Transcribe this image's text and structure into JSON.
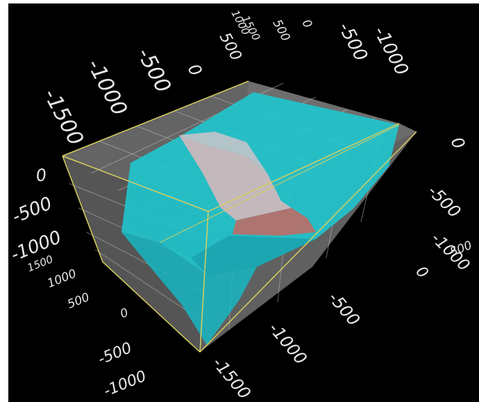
{
  "colors": {
    "background": "#000000",
    "frame": "#ffffff",
    "box_face": "#6e6e6e",
    "axis_line": "#d8d060",
    "grid_line": "#b8b8b8",
    "surface_outer": "#1ec8d2",
    "surface_inner_light": "#c9b4b8",
    "surface_inner_dark": "#b46e68",
    "tick_text": "#e8e8e8"
  },
  "axes": {
    "top_far": [
      "-1500",
      "-1000",
      "-500",
      "0",
      "500"
    ],
    "top_small_far": [
      "1000",
      "1500"
    ],
    "top_near": [
      "500",
      "0",
      "-500",
      "-1000"
    ],
    "left_upper": [
      "0",
      "-500",
      "-1000"
    ],
    "left_lower": [
      "1500",
      "1000",
      "500",
      "0",
      "-500",
      "-1000"
    ],
    "right_upper": [
      "0",
      "-500",
      "-1000"
    ],
    "right_extra": [
      "500"
    ],
    "bottom_right": [
      "0",
      "-500",
      "-1000",
      "-1500"
    ]
  }
}
